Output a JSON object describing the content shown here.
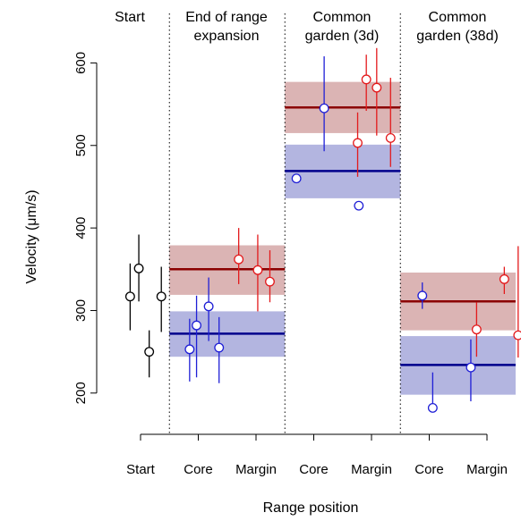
{
  "chart_data": {
    "type": "scatter",
    "xlabel": "Range position",
    "ylabel": "Velocity (μm/s)",
    "ylim": [
      150,
      660
    ],
    "y_ticks": [
      200,
      300,
      400,
      500,
      600
    ],
    "x_tick_labels": [
      "Start",
      "Core",
      "Margin",
      "Core",
      "Margin",
      "Core",
      "Margin"
    ],
    "panels": [
      {
        "title_lines": [
          "Start"
        ]
      },
      {
        "title_lines": [
          "End of range",
          "expansion"
        ]
      },
      {
        "title_lines": [
          "Common",
          "garden (3d)"
        ]
      },
      {
        "title_lines": [
          "Common",
          "garden (38d)"
        ]
      }
    ],
    "colors": {
      "start": "#000000",
      "core": "#1f1fd6",
      "margin": "#e31a1c",
      "core_line": "#00008b",
      "margin_line": "#8b0000",
      "core_band": "#b3b5e0",
      "margin_band": "#dbb4b4"
    },
    "summary_bands": [
      {
        "panel": "End of range expansion",
        "group": "Core",
        "mean": 272,
        "lower": 244,
        "upper": 299
      },
      {
        "panel": "End of range expansion",
        "group": "Margin",
        "mean": 350,
        "lower": 319,
        "upper": 379
      },
      {
        "panel": "Common garden (3d)",
        "group": "Core",
        "mean": 469,
        "lower": 436,
        "upper": 501
      },
      {
        "panel": "Common garden (3d)",
        "group": "Margin",
        "mean": 546,
        "lower": 515,
        "upper": 577
      },
      {
        "panel": "Common garden (38d)",
        "group": "Core",
        "mean": 234,
        "lower": 198,
        "upper": 269
      },
      {
        "panel": "Common garden (38d)",
        "group": "Margin",
        "mean": 311,
        "lower": 276,
        "upper": 346
      }
    ],
    "series": [
      {
        "group": "Start",
        "position": 1,
        "points": [
          {
            "offset": -0.06,
            "y": 317,
            "lower": 276,
            "upper": 357
          },
          {
            "offset": -0.01,
            "y": 351,
            "lower": 311,
            "upper": 392
          },
          {
            "offset": 0.05,
            "y": 250,
            "lower": 219,
            "upper": 276
          },
          {
            "offset": 0.12,
            "y": 317,
            "lower": 274,
            "upper": 353
          }
        ]
      },
      {
        "group": "End of range expansion Core",
        "position": 2,
        "points": [
          {
            "offset": -0.05,
            "y": 253,
            "lower": 214,
            "upper": 290
          },
          {
            "offset": -0.01,
            "y": 282,
            "lower": 219,
            "upper": 318
          },
          {
            "offset": 0.06,
            "y": 305,
            "lower": 263,
            "upper": 340
          },
          {
            "offset": 0.12,
            "y": 255,
            "lower": 212,
            "upper": 292
          }
        ]
      },
      {
        "group": "End of range expansion Margin",
        "position": 3,
        "points": [
          {
            "offset": -0.1,
            "y": 362,
            "lower": 332,
            "upper": 400
          },
          {
            "offset": 0.01,
            "y": 349,
            "lower": 299,
            "upper": 392
          },
          {
            "offset": 0.08,
            "y": 335,
            "lower": 310,
            "upper": 373
          }
        ]
      },
      {
        "group": "Common garden (3d) Core",
        "position": 4,
        "points": [
          {
            "offset": -0.1,
            "y": 460,
            "lower": null,
            "upper": null
          },
          {
            "offset": 0.06,
            "y": 545,
            "lower": 493,
            "upper": 608
          },
          {
            "offset": 0.26,
            "y": 427,
            "lower": null,
            "upper": null
          }
        ]
      },
      {
        "group": "Common garden (3d) Margin",
        "position": 5,
        "points": [
          {
            "offset": -0.08,
            "y": 503,
            "lower": 462,
            "upper": 540
          },
          {
            "offset": -0.03,
            "y": 580,
            "lower": 542,
            "upper": 610
          },
          {
            "offset": 0.03,
            "y": 570,
            "lower": 512,
            "upper": 618
          },
          {
            "offset": 0.11,
            "y": 509,
            "lower": 474,
            "upper": 582
          }
        ]
      },
      {
        "group": "Common garden (38d) Core",
        "position": 6,
        "points": [
          {
            "offset": -0.04,
            "y": 318,
            "lower": 302,
            "upper": 334
          },
          {
            "offset": 0.02,
            "y": 182,
            "lower": null,
            "upper": 225
          },
          {
            "offset": 0.24,
            "y": 231,
            "lower": 190,
            "upper": 265
          }
        ]
      },
      {
        "group": "Common garden (38d) Margin",
        "position": 7,
        "points": [
          {
            "offset": -0.06,
            "y": 277,
            "lower": 244,
            "upper": 310
          },
          {
            "offset": 0.1,
            "y": 338,
            "lower": 320,
            "upper": 353
          },
          {
            "offset": 0.18,
            "y": 270,
            "lower": 243,
            "upper": 378
          }
        ]
      }
    ]
  }
}
